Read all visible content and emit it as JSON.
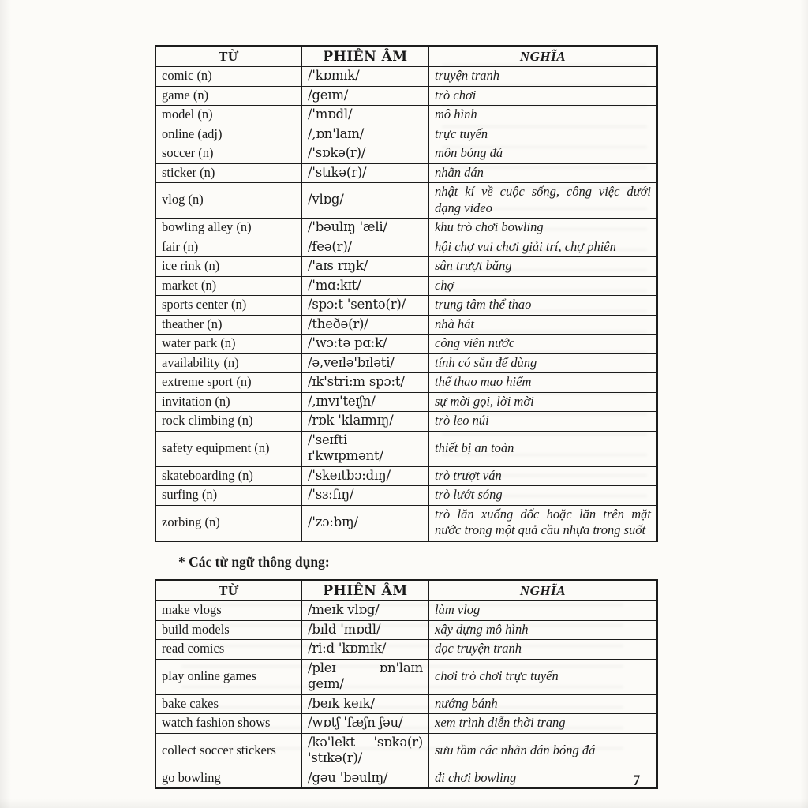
{
  "document": {
    "section_note": "* Các từ ngữ thông dụng:",
    "page_number": "7",
    "table1": {
      "headers": [
        "TỪ",
        "PHIÊN ÂM",
        "NGHĨA"
      ],
      "rows": [
        [
          "comic (n)",
          "/'kɒmɪk/",
          "truyện tranh"
        ],
        [
          "game (n)",
          "/geɪm/",
          "trò chơi"
        ],
        [
          "model (n)",
          "/'mɒdl/",
          "mô hình"
        ],
        [
          "online (adj)",
          "/,ɒn'laɪn/",
          "trực tuyến"
        ],
        [
          "soccer (n)",
          "/'sɒkə(r)/",
          "môn bóng đá"
        ],
        [
          "sticker (n)",
          "/'stɪkə(r)/",
          "nhãn dán"
        ],
        [
          "vlog (n)",
          "/vlɒg/",
          "nhật kí về cuộc sống, công việc dưới dạng video"
        ],
        [
          "bowling alley (n)",
          "/'bəulɪŋ 'æli/",
          "khu trò chơi bowling"
        ],
        [
          "fair (n)",
          "/feə(r)/",
          "hội chợ vui chơi giải trí, chợ phiên"
        ],
        [
          "ice rink (n)",
          "/'aɪs rɪŋk/",
          "sân trượt băng"
        ],
        [
          "market (n)",
          "/'mɑ:kɪt/",
          "chợ"
        ],
        [
          "sports center (n)",
          "/spɔ:t 'sentə(r)/",
          "trung tâm thể thao"
        ],
        [
          "theather (n)",
          "/theðə(r)/",
          "nhà hát"
        ],
        [
          "water park (n)",
          "/'wɔ:tə pɑ:k/",
          "công viên nước"
        ],
        [
          "availability (n)",
          "/ə,veɪlə'bɪləti/",
          "tính có sẵn để dùng"
        ],
        [
          "extreme sport (n)",
          "/ɪk'stri:m spɔ:t/",
          "thể thao mạo hiểm"
        ],
        [
          "invitation (n)",
          "/,ɪnvɪ'teɪʃn/",
          "sự mời gọi, lời mời"
        ],
        [
          "rock climbing (n)",
          "/rɒk 'klaɪmɪŋ/",
          "trò leo núi"
        ],
        [
          "safety equipment (n)",
          "/'seɪfti ɪ'kwɪpmənt/",
          "thiết bị an toàn"
        ],
        [
          "skateboarding (n)",
          "/'skeɪtbɔ:dɪŋ/",
          "trò trượt ván"
        ],
        [
          "surfing (n)",
          "/'sɜ:fɪŋ/",
          "trò lướt sóng"
        ],
        [
          "zorbing (n)",
          "/'zɔ:bɪŋ/",
          "trò lăn xuống dốc hoặc lăn trên mặt nước trong một quả cầu nhựa trong suốt"
        ]
      ]
    },
    "table2": {
      "headers": [
        "TỪ",
        "PHIÊN ÂM",
        "NGHĨA"
      ],
      "rows": [
        [
          "make vlogs",
          "/meɪk vlɒg/",
          "làm vlog"
        ],
        [
          "build models",
          "/bɪld 'mɒdl/",
          "xây dựng mô hình"
        ],
        [
          "read comics",
          "/ri:d 'kɒmɪk/",
          "đọc truyện tranh"
        ],
        [
          "play online games",
          "/pleɪ ɒn'laɪn geɪm/",
          "chơi trò chơi trực tuyến"
        ],
        [
          "bake cakes",
          "/beɪk keɪk/",
          "nướng bánh"
        ],
        [
          "watch fashion shows",
          "/wɒtʃ 'fæʃn ʃəu/",
          "xem trình diễn thời trang"
        ],
        [
          "collect soccer stickers",
          "/kə'lekt 'sɒkə(r) 'stɪkə(r)/",
          "sưu tầm các nhãn dán bóng đá"
        ],
        [
          "go bowling",
          "/gəu 'bəulɪŋ/",
          "đi chơi bowling"
        ]
      ]
    }
  }
}
